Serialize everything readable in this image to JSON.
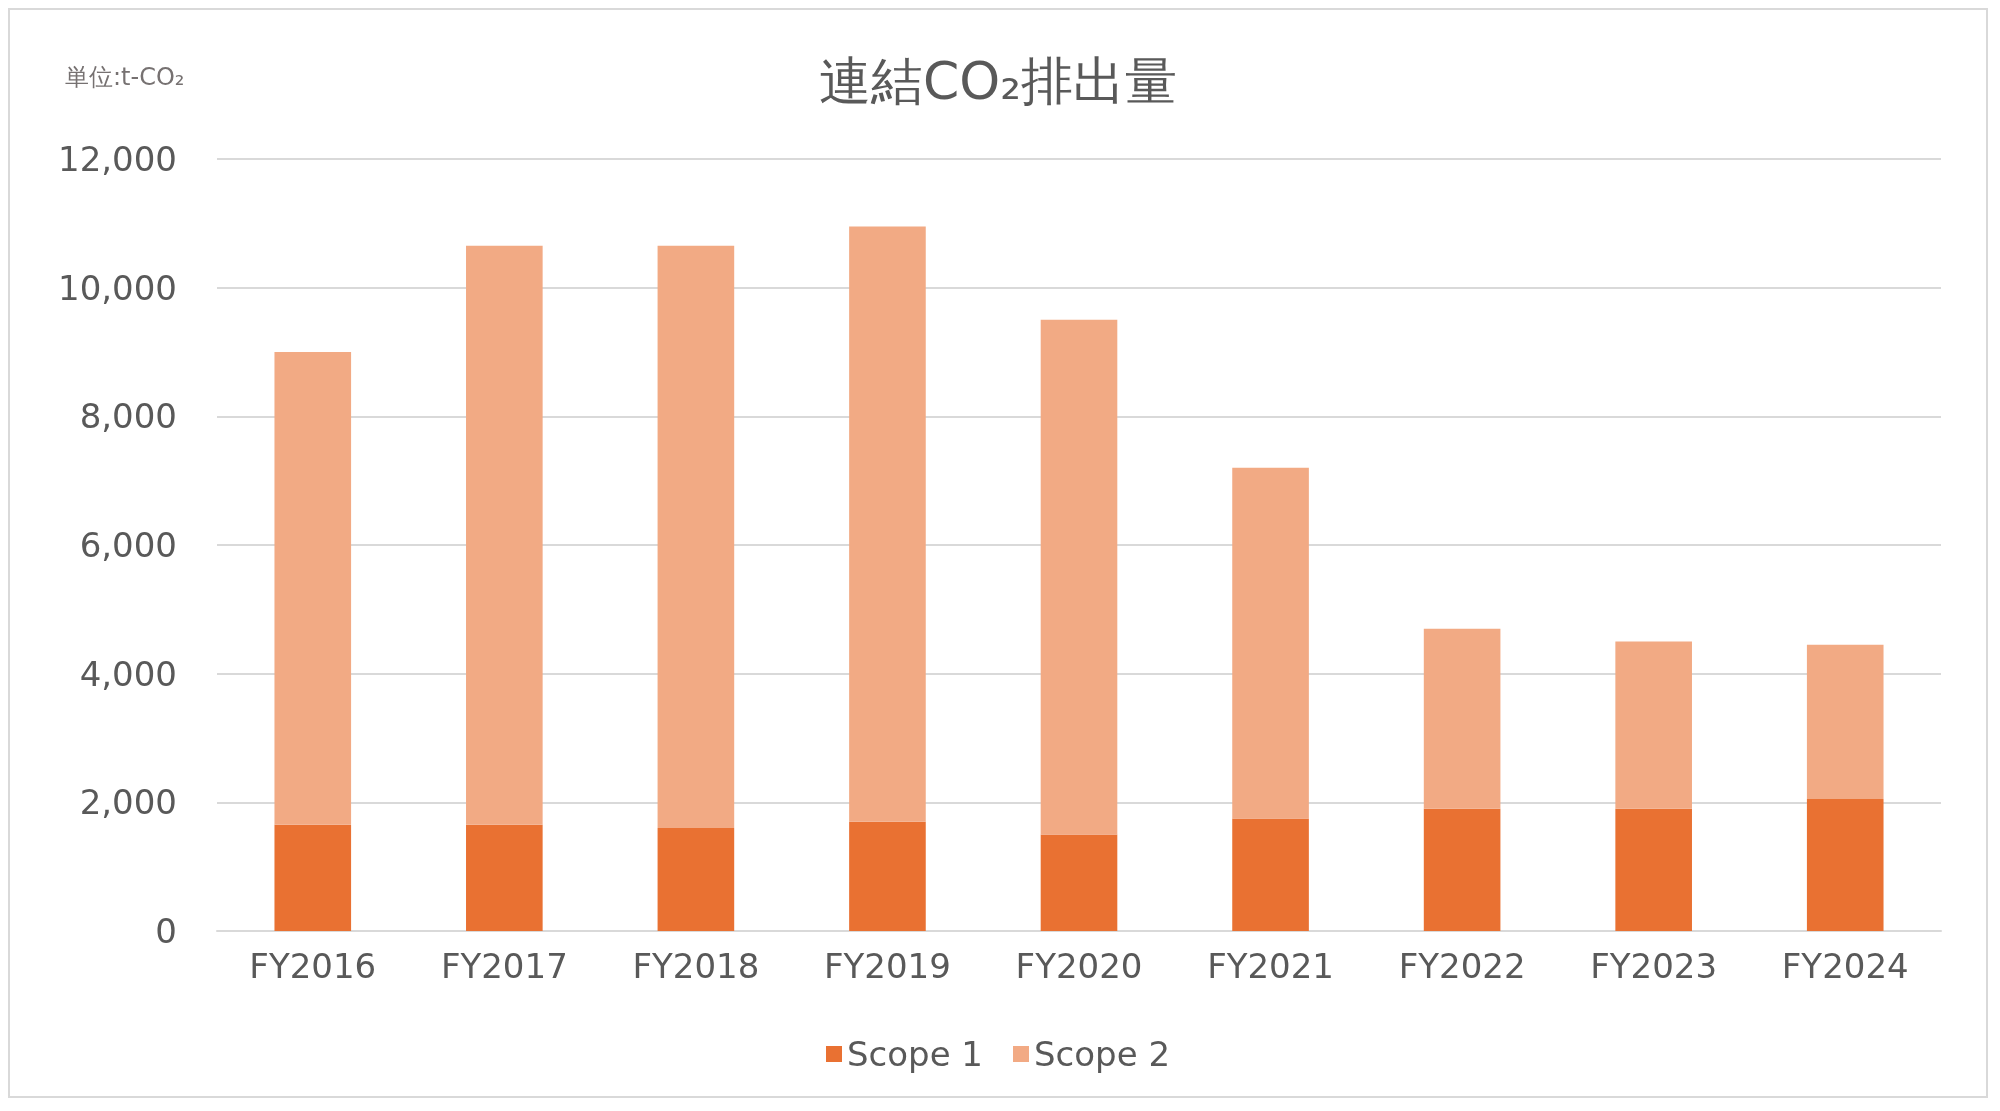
{
  "chart_data": {
    "type": "bar",
    "title": "連結CO₂排出量",
    "annotations": [
      "単位:t-CO₂"
    ],
    "categories": [
      "FY2016",
      "FY2017",
      "FY2018",
      "FY2019",
      "FY2020",
      "FY2021",
      "FY2022",
      "FY2023",
      "FY2024"
    ],
    "stacked": true,
    "series": [
      {
        "name": "Scope 1",
        "color": "#e97132",
        "values": [
          1650,
          1650,
          1600,
          1700,
          1500,
          1750,
          1900,
          1900,
          2050
        ]
      },
      {
        "name": "Scope 2",
        "color": "#f2aa84",
        "values": [
          7350,
          9000,
          9050,
          9250,
          8000,
          5450,
          2800,
          2600,
          2400
        ]
      }
    ],
    "ylim": [
      0,
      12000
    ],
    "yticks": [
      0,
      {
        "value": 2000,
        "label": "2,000"
      },
      {
        "value": 4000,
        "label": "4,000"
      },
      {
        "value": 6000,
        "label": "6,000"
      },
      {
        "value": 8000,
        "label": "8,000"
      },
      {
        "value": 10000,
        "label": "10,000"
      },
      {
        "value": 12000,
        "label": "12,000"
      }
    ],
    "grid": "y",
    "legend": "bottom"
  }
}
